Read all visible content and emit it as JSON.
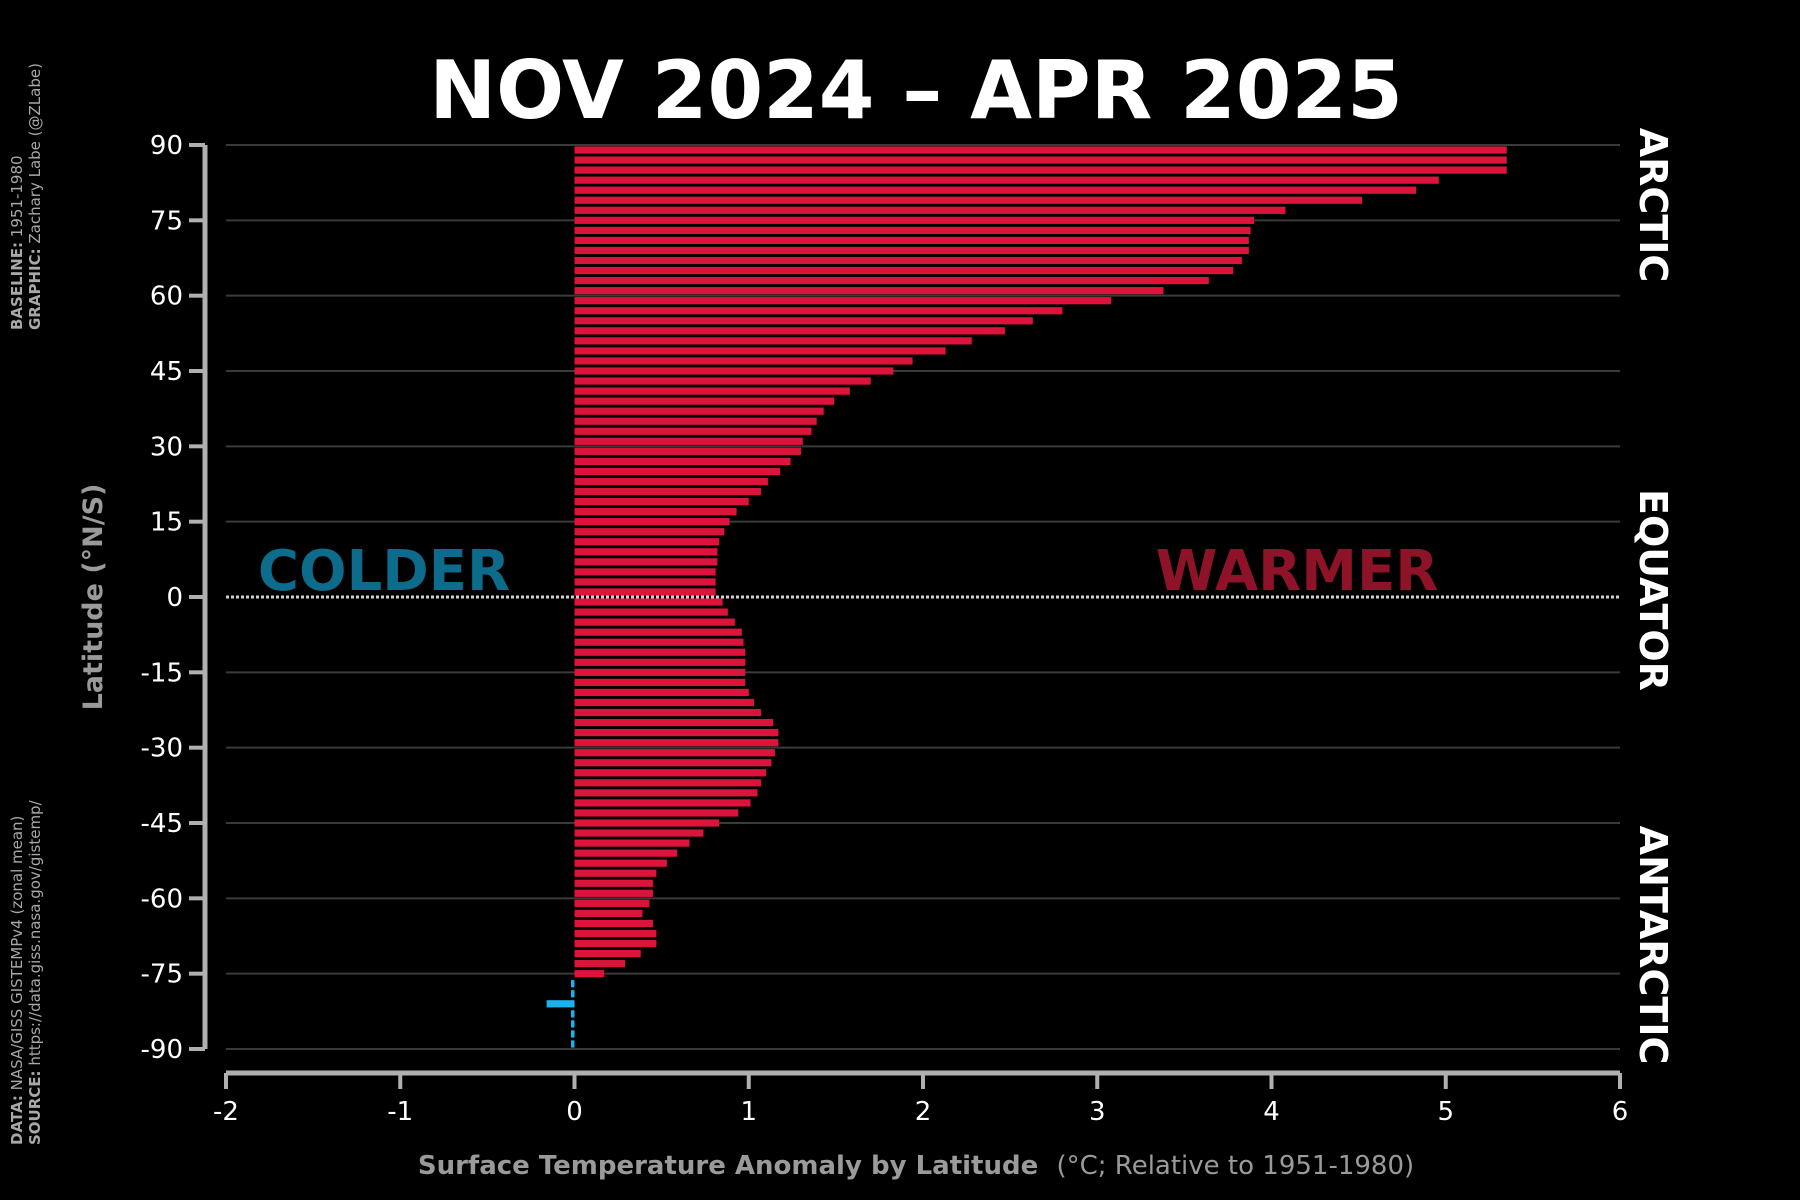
{
  "chart_data": {
    "type": "bar",
    "orientation": "horizontal",
    "title": "NOV 2024 – APR 2025",
    "xlabel_bold": "Surface Temperature Anomaly by Latitude",
    "xlabel_rest": "(°C; Relative to 1951-1980)",
    "ylabel": "Latitude (°N/S)",
    "xlim": [
      -2,
      6
    ],
    "ylim": [
      -90,
      90
    ],
    "x_ticks": [
      "-2",
      "-1",
      "0",
      "1",
      "2",
      "3",
      "4",
      "5",
      "6"
    ],
    "y_ticks": [
      "90",
      "75",
      "60",
      "45",
      "30",
      "15",
      "0",
      "-15",
      "-30",
      "-45",
      "-60",
      "-75",
      "-90"
    ],
    "grid": true,
    "annotations": {
      "colder": "COLDER",
      "warmer": "WARMER",
      "regions": [
        "ARCTIC",
        "EQUATOR",
        "ANTARCTIC"
      ]
    },
    "colors": {
      "positive": "#dc143c",
      "negative": "#1ab2ee",
      "background": "#000000",
      "axis": "#b0b0b0",
      "grid": "#3a3a3a"
    },
    "latitudes": [
      89,
      87,
      85,
      83,
      81,
      79,
      77,
      75,
      73,
      71,
      69,
      67,
      65,
      63,
      61,
      59,
      57,
      55,
      53,
      51,
      49,
      47,
      45,
      43,
      41,
      39,
      37,
      35,
      33,
      31,
      29,
      27,
      25,
      23,
      21,
      19,
      17,
      15,
      13,
      11,
      9,
      7,
      5,
      3,
      1,
      -1,
      -3,
      -5,
      -7,
      -9,
      -11,
      -13,
      -15,
      -17,
      -19,
      -21,
      -23,
      -25,
      -27,
      -29,
      -31,
      -33,
      -35,
      -37,
      -39,
      -41,
      -43,
      -45,
      -47,
      -49,
      -51,
      -53,
      -55,
      -57,
      -59,
      -61,
      -63,
      -65,
      -67,
      -69,
      -71,
      -73,
      -75,
      -77,
      -79,
      -81,
      -83,
      -85,
      -87,
      -89
    ],
    "values": [
      5.35,
      5.35,
      5.35,
      4.96,
      4.83,
      4.52,
      4.08,
      3.9,
      3.88,
      3.87,
      3.87,
      3.83,
      3.78,
      3.64,
      3.38,
      3.08,
      2.8,
      2.63,
      2.47,
      2.28,
      2.13,
      1.94,
      1.83,
      1.7,
      1.58,
      1.49,
      1.43,
      1.39,
      1.36,
      1.31,
      1.3,
      1.24,
      1.18,
      1.11,
      1.07,
      1.0,
      0.93,
      0.89,
      0.86,
      0.83,
      0.82,
      0.82,
      0.81,
      0.81,
      0.81,
      0.85,
      0.88,
      0.92,
      0.96,
      0.97,
      0.98,
      0.98,
      0.98,
      0.98,
      1.0,
      1.03,
      1.07,
      1.14,
      1.17,
      1.17,
      1.15,
      1.13,
      1.1,
      1.07,
      1.05,
      1.01,
      0.94,
      0.83,
      0.74,
      0.66,
      0.59,
      0.53,
      0.47,
      0.45,
      0.45,
      0.43,
      0.39,
      0.45,
      0.47,
      0.47,
      0.38,
      0.29,
      0.17,
      -0.02,
      -0.02,
      -0.16,
      -0.02,
      -0.02,
      -0.02,
      -0.02
    ]
  },
  "sidebar": {
    "baseline_label": "BASELINE:",
    "baseline_value": " 1951-1980",
    "graphic_label": "GRAPHIC:",
    "graphic_value": " Zachary Labe (@ZLabe)",
    "data_label": "DATA:",
    "data_value": " NASA/GISS GISTEMPv4 (zonal mean)",
    "source_label": "SOURCE:",
    "source_value": " https://data.giss.nasa.gov/gistemp/"
  }
}
